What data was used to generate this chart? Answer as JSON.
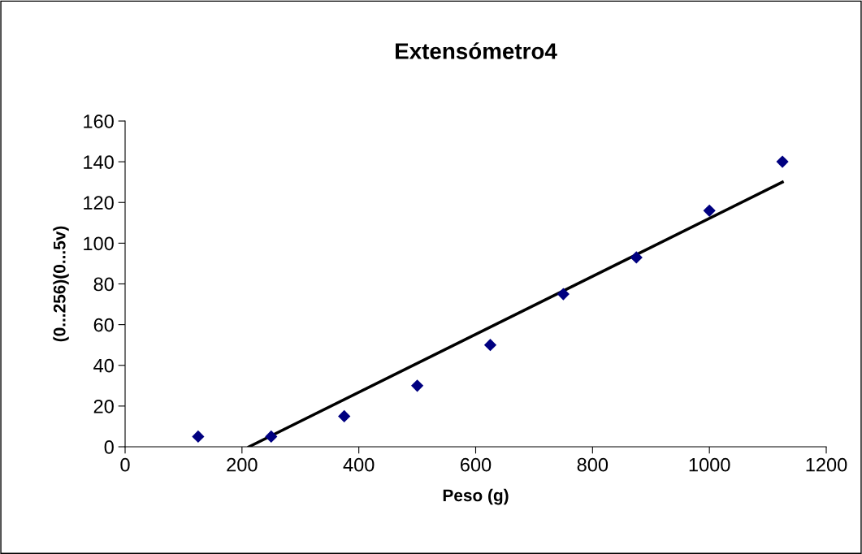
{
  "chart_data": {
    "type": "scatter",
    "title": "Extensómetro4",
    "xlabel": "Peso (g)",
    "ylabel": "(0...256)(0...5v)",
    "x": [
      125,
      250,
      375,
      500,
      625,
      750,
      875,
      1000,
      1125
    ],
    "series": [
      {
        "color": "#000080",
        "marker": "diamond",
        "values": [
          5,
          5,
          15,
          30,
          50,
          75,
          93,
          116,
          140
        ]
      },
      {
        "type": "line",
        "color": "#000000",
        "marker": "none",
        "line_style": "solid",
        "x": [
          212,
          1125
        ],
        "values": [
          0,
          130
        ]
      }
    ],
    "xlim": [
      0,
      1200
    ],
    "xticks": [
      0,
      200,
      400,
      600,
      800,
      1000,
      1200
    ],
    "ylim": [
      0,
      160
    ],
    "yticks": [
      0,
      20,
      40,
      60,
      80,
      100,
      120,
      140,
      160
    ],
    "grid": false,
    "legend": false
  }
}
